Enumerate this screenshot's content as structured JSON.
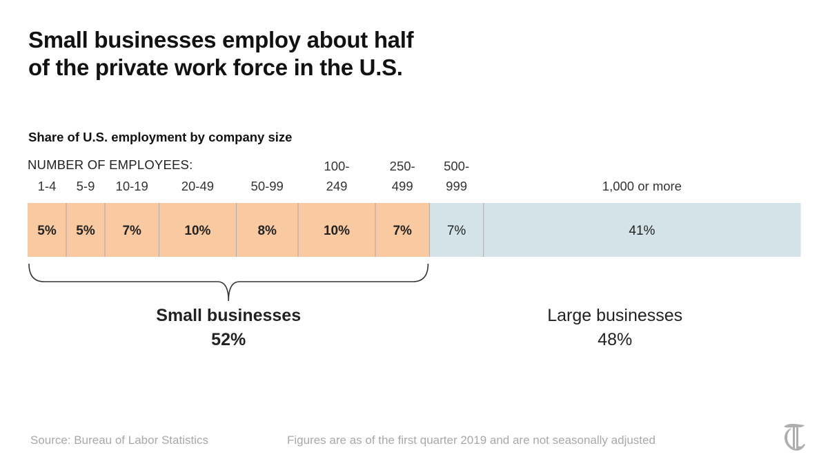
{
  "title_lines": [
    "Small businesses employ about half",
    "of the private work force in the U.S."
  ],
  "subtitle": "Share of U.S. employment by company size",
  "axis_label": "NUMBER OF EMPLOYEES:",
  "footer": {
    "source": "Source: Bureau of Labor Statistics",
    "note": "Figures are as of the first quarter 2019 and are not seasonally adjusted"
  },
  "logo_icon": "nyt-t-logo-icon",
  "chart_data": {
    "type": "bar",
    "orientation": "horizontal-stacked",
    "categories": [
      [
        "1-4"
      ],
      [
        "5-9"
      ],
      [
        "10-19"
      ],
      [
        "20-49"
      ],
      [
        "50-99"
      ],
      [
        "100-",
        "249"
      ],
      [
        "250-",
        "499"
      ],
      [
        "500-",
        "999"
      ],
      [
        "1,000 or more"
      ]
    ],
    "values": [
      5,
      5,
      7,
      10,
      8,
      10,
      7,
      7,
      41
    ],
    "value_labels": [
      "5%",
      "5%",
      "7%",
      "10%",
      "8%",
      "10%",
      "7%",
      "7%",
      "41%"
    ],
    "group_of_segment": [
      "small",
      "small",
      "small",
      "small",
      "small",
      "small",
      "small",
      "large",
      "large"
    ],
    "groups": [
      {
        "key": "small",
        "name": "Small businesses",
        "total_label": "52%",
        "color": "#f9c9a2",
        "bold": true,
        "bracket": true
      },
      {
        "key": "large",
        "name": "Large businesses",
        "total_label": "48%",
        "color": "#d4e3e8",
        "bold": false,
        "bracket": false
      }
    ],
    "divider_color": "#a9a9a9",
    "unit": "%"
  }
}
